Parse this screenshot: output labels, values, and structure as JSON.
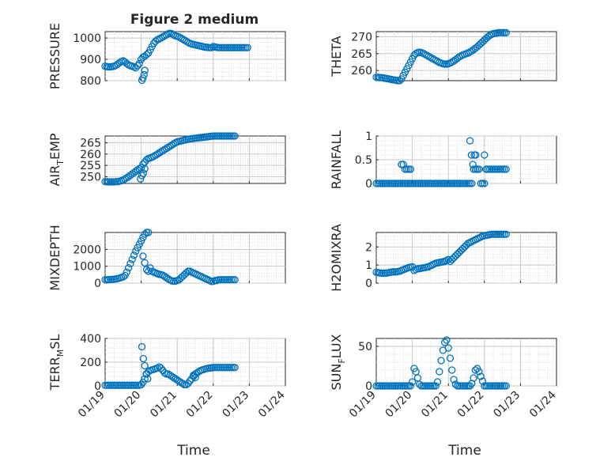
{
  "figure": {
    "title": "Figure 2 medium",
    "marker_color": "#0072BD",
    "grid": true,
    "xlabel": "Time",
    "xticks": [
      "01/19",
      "01/20",
      "01/21",
      "01/22",
      "01/23",
      "01/24"
    ]
  },
  "chart_data": [
    {
      "type": "scatter",
      "ylabel": "PRESSURE",
      "ylim": [
        800,
        1030
      ],
      "yticks": [
        "800",
        "900",
        "1000"
      ],
      "ytick_values": [
        800,
        900,
        1000
      ],
      "x": [
        0.0,
        0.05,
        0.1,
        0.15,
        0.2,
        0.25,
        0.3,
        0.35,
        0.4,
        0.45,
        0.5,
        0.55,
        0.6,
        0.65,
        0.7,
        0.75,
        0.8,
        0.85,
        0.9,
        0.95,
        1.0,
        1.05,
        1.1,
        1.15,
        1.2,
        1.25,
        1.3,
        1.35,
        1.4,
        1.45,
        1.5,
        1.55,
        1.6,
        1.65,
        1.7,
        1.75,
        1.8,
        1.85,
        1.9,
        1.95,
        2.0,
        2.05,
        2.1,
        2.15,
        2.2,
        2.25,
        2.3,
        2.35,
        2.4,
        2.45,
        2.5,
        2.55,
        2.6,
        2.65,
        2.7,
        2.75,
        2.8,
        2.85,
        2.9,
        2.95,
        3.0,
        3.05,
        3.1,
        3.15,
        3.2,
        3.25,
        3.3,
        3.35,
        3.4,
        3.45,
        3.5,
        3.55,
        3.6,
        3.65,
        3.7,
        3.75,
        3.8,
        3.85,
        3.9,
        3.95,
        1.02,
        1.05,
        1.08,
        1.1
      ],
      "y": [
        868,
        866,
        864,
        865,
        866,
        868,
        872,
        878,
        884,
        890,
        893,
        888,
        880,
        874,
        870,
        868,
        864,
        860,
        870,
        880,
        900,
        910,
        915,
        922,
        930,
        945,
        960,
        975,
        985,
        992,
        996,
        1000,
        1005,
        1010,
        1015,
        1020,
        1022,
        1020,
        1015,
        1010,
        1008,
        1005,
        1000,
        995,
        990,
        985,
        980,
        975,
        972,
        970,
        968,
        966,
        964,
        962,
        960,
        958,
        957,
        956,
        955,
        955,
        960,
        958,
        956,
        955,
        955,
        955,
        955,
        955,
        955,
        955,
        955,
        955,
        955,
        955,
        955,
        955,
        955,
        955,
        955,
        955,
        802,
        812,
        828,
        848
      ]
    },
    {
      "type": "scatter",
      "ylabel": "THETA",
      "ylim": [
        257,
        271.5
      ],
      "yticks": [
        "260",
        "265",
        "270"
      ],
      "ytick_values": [
        260,
        265,
        270
      ],
      "x": [
        0.0,
        0.05,
        0.1,
        0.15,
        0.2,
        0.25,
        0.3,
        0.35,
        0.4,
        0.45,
        0.5,
        0.55,
        0.6,
        0.65,
        0.7,
        0.75,
        0.8,
        0.85,
        0.9,
        0.95,
        1.0,
        1.05,
        1.1,
        1.15,
        1.2,
        1.25,
        1.3,
        1.35,
        1.4,
        1.45,
        1.5,
        1.55,
        1.6,
        1.65,
        1.7,
        1.75,
        1.8,
        1.85,
        1.9,
        1.95,
        2.0,
        2.05,
        2.1,
        2.15,
        2.2,
        2.25,
        2.3,
        2.35,
        2.4,
        2.45,
        2.5,
        2.55,
        2.6,
        2.65,
        2.7,
        2.75,
        2.8,
        2.85,
        2.9,
        2.95,
        3.0,
        3.05,
        3.1,
        3.15,
        3.2,
        3.25,
        3.3,
        3.35,
        3.4,
        3.45,
        3.5,
        3.55,
        3.6
      ],
      "y": [
        258.0,
        258.0,
        257.9,
        257.9,
        257.8,
        257.7,
        257.6,
        257.5,
        257.4,
        257.3,
        257.2,
        257.1,
        257.0,
        257.0,
        257.5,
        258.5,
        259.5,
        260.5,
        261.5,
        262.5,
        263.5,
        264.5,
        265.0,
        265.3,
        265.4,
        265.3,
        265.1,
        264.8,
        264.5,
        264.2,
        263.9,
        263.6,
        263.3,
        263.0,
        262.7,
        262.4,
        262.2,
        262.0,
        261.9,
        261.9,
        262.0,
        262.2,
        262.5,
        262.8,
        263.2,
        263.6,
        264.0,
        264.3,
        264.6,
        264.8,
        265.0,
        265.2,
        265.5,
        265.8,
        266.2,
        266.6,
        267.0,
        267.5,
        268.0,
        268.5,
        269.0,
        269.5,
        270.0,
        270.4,
        270.7,
        270.9,
        271.0,
        271.1,
        271.2,
        271.2,
        271.2,
        271.2,
        271.2
      ]
    },
    {
      "type": "scatter",
      "ylabel": "AIR_TEMP",
      "ylim": [
        247,
        268
      ],
      "yticks": [
        "250",
        "255",
        "260",
        "265"
      ],
      "ytick_values": [
        250,
        255,
        260,
        265
      ],
      "x": [
        0.0,
        0.05,
        0.1,
        0.15,
        0.2,
        0.25,
        0.3,
        0.35,
        0.4,
        0.45,
        0.5,
        0.55,
        0.6,
        0.65,
        0.7,
        0.75,
        0.8,
        0.85,
        0.9,
        0.95,
        1.0,
        1.05,
        1.1,
        1.15,
        1.2,
        1.25,
        1.3,
        1.35,
        1.4,
        1.45,
        1.5,
        1.55,
        1.6,
        1.65,
        1.7,
        1.75,
        1.8,
        1.85,
        1.9,
        1.95,
        2.0,
        2.05,
        2.1,
        2.15,
        2.2,
        2.25,
        2.3,
        2.35,
        2.4,
        2.45,
        2.5,
        2.55,
        2.6,
        2.65,
        2.7,
        2.75,
        2.8,
        2.85,
        2.9,
        2.95,
        3.0,
        3.05,
        3.1,
        3.15,
        3.2,
        3.25,
        3.3,
        3.35,
        3.4,
        3.45,
        3.5,
        3.55,
        3.6,
        0.98,
        1.02,
        1.06,
        1.1
      ],
      "y": [
        247.8,
        247.8,
        247.7,
        247.7,
        247.7,
        247.7,
        247.8,
        247.8,
        248.0,
        248.2,
        248.5,
        249.0,
        249.5,
        250.0,
        250.6,
        251.2,
        251.8,
        252.4,
        253.0,
        253.5,
        254.0,
        255.5,
        256.5,
        257.5,
        258.0,
        258.3,
        258.6,
        259.0,
        259.5,
        260.0,
        260.5,
        261.0,
        261.5,
        262.0,
        262.5,
        263.0,
        263.5,
        264.0,
        264.5,
        265.0,
        265.4,
        265.6,
        265.8,
        266.0,
        266.2,
        266.4,
        266.6,
        266.7,
        266.8,
        266.9,
        267.0,
        267.1,
        267.2,
        267.3,
        267.4,
        267.5,
        267.6,
        267.7,
        267.8,
        267.9,
        268.0,
        268.0,
        268.0,
        268.0,
        268.0,
        268.0,
        268.0,
        268.0,
        268.0,
        268.0,
        268.0,
        268.0,
        268.0,
        249.0,
        250.5,
        251.5,
        253.5
      ]
    },
    {
      "type": "scatter",
      "ylabel": "RAINFALL",
      "ylim": [
        0,
        1
      ],
      "yticks": [
        "0",
        "0.5",
        "1"
      ],
      "ytick_values": [
        0,
        0.5,
        1
      ],
      "x": [
        0.0,
        0.05,
        0.1,
        0.15,
        0.2,
        0.25,
        0.3,
        0.35,
        0.4,
        0.45,
        0.5,
        0.55,
        0.6,
        0.65,
        0.7,
        0.75,
        0.8,
        0.85,
        0.9,
        0.95,
        1.0,
        1.05,
        1.1,
        1.15,
        1.2,
        1.25,
        1.3,
        1.35,
        1.4,
        1.45,
        1.5,
        1.55,
        1.6,
        1.65,
        1.7,
        1.75,
        1.8,
        1.85,
        1.9,
        1.95,
        2.0,
        2.05,
        2.1,
        2.15,
        2.2,
        2.25,
        2.3,
        2.35,
        2.4,
        2.45,
        2.5,
        2.55,
        2.6,
        2.65,
        2.7,
        2.75,
        2.8,
        2.85,
        2.9,
        2.95,
        3.0,
        3.05,
        3.1,
        3.15,
        3.2,
        3.25,
        3.3,
        3.35,
        3.4,
        3.45,
        3.5,
        3.55,
        3.6,
        0.7,
        0.75,
        0.8,
        0.85,
        0.9,
        0.95,
        2.6,
        2.64,
        2.68,
        2.72,
        2.76,
        2.8,
        3.0,
        3.05
      ],
      "y": [
        0,
        0,
        0,
        0,
        0,
        0,
        0,
        0,
        0,
        0,
        0,
        0,
        0,
        0,
        0,
        0,
        0,
        0,
        0,
        0,
        0,
        0,
        0,
        0,
        0,
        0,
        0,
        0,
        0,
        0,
        0,
        0,
        0,
        0,
        0,
        0,
        0,
        0,
        0,
        0,
        0,
        0,
        0,
        0,
        0,
        0,
        0,
        0,
        0,
        0,
        0,
        0,
        0,
        0,
        0.3,
        0.3,
        0.3,
        0.3,
        0,
        0,
        0,
        0.3,
        0.3,
        0.3,
        0.3,
        0.3,
        0.3,
        0.3,
        0.3,
        0.3,
        0.3,
        0.3,
        0.3,
        0.4,
        0.4,
        0.3,
        0.3,
        0.3,
        0.3,
        0.9,
        0.6,
        0.4,
        0.6,
        0.6,
        0.3,
        0.6,
        0.3
      ]
    },
    {
      "type": "scatter",
      "ylabel": "MIXDEPTH",
      "ylim": [
        0,
        3000
      ],
      "yticks": [
        "0",
        "1000",
        "2000"
      ],
      "ytick_values": [
        0,
        1000,
        2000
      ],
      "x": [
        0.0,
        0.05,
        0.1,
        0.15,
        0.2,
        0.25,
        0.3,
        0.35,
        0.4,
        0.45,
        0.5,
        0.55,
        0.6,
        0.65,
        0.7,
        0.75,
        0.8,
        0.85,
        0.9,
        0.95,
        1.0,
        1.05,
        1.1,
        1.15,
        1.2,
        1.25,
        1.3,
        1.35,
        1.4,
        1.45,
        1.5,
        1.55,
        1.6,
        1.65,
        1.7,
        1.75,
        1.8,
        1.85,
        1.9,
        1.95,
        2.0,
        2.05,
        2.1,
        2.15,
        2.2,
        2.25,
        2.3,
        2.35,
        2.4,
        2.45,
        2.5,
        2.55,
        2.6,
        2.65,
        2.7,
        2.75,
        2.8,
        2.85,
        2.9,
        2.95,
        3.0,
        3.05,
        3.1,
        3.15,
        3.2,
        3.25,
        3.3,
        3.35,
        3.4,
        3.45,
        3.5,
        3.55,
        3.6,
        1.05,
        1.1,
        1.15,
        1.2
      ],
      "y": [
        200,
        200,
        200,
        210,
        220,
        230,
        250,
        270,
        300,
        330,
        370,
        450,
        650,
        900,
        1150,
        1400,
        1650,
        1900,
        2100,
        2300,
        2500,
        2700,
        2900,
        3000,
        3000,
        900,
        700,
        650,
        600,
        560,
        520,
        500,
        470,
        400,
        320,
        250,
        180,
        130,
        110,
        120,
        150,
        200,
        300,
        400,
        500,
        600,
        700,
        700,
        650,
        600,
        550,
        500,
        450,
        400,
        350,
        300,
        250,
        200,
        150,
        100,
        100,
        150,
        150,
        200,
        200,
        200,
        200,
        200,
        200,
        200,
        200,
        200,
        200,
        1600,
        1200,
        800,
        700
      ]
    },
    {
      "type": "scatter",
      "ylabel": "H2OMIXRA",
      "ylim": [
        0,
        2.8
      ],
      "yticks": [
        "0",
        "1",
        "2"
      ],
      "ytick_values": [
        0,
        1,
        2
      ],
      "x": [
        0.0,
        0.05,
        0.1,
        0.15,
        0.2,
        0.25,
        0.3,
        0.35,
        0.4,
        0.45,
        0.5,
        0.55,
        0.6,
        0.65,
        0.7,
        0.75,
        0.8,
        0.85,
        0.9,
        0.95,
        1.0,
        1.05,
        1.1,
        1.15,
        1.2,
        1.25,
        1.3,
        1.35,
        1.4,
        1.45,
        1.5,
        1.55,
        1.6,
        1.65,
        1.7,
        1.75,
        1.8,
        1.85,
        1.9,
        1.95,
        2.0,
        2.05,
        2.1,
        2.15,
        2.2,
        2.25,
        2.3,
        2.35,
        2.4,
        2.45,
        2.5,
        2.55,
        2.6,
        2.65,
        2.7,
        2.75,
        2.8,
        2.85,
        2.9,
        2.95,
        3.0,
        3.05,
        3.1,
        3.15,
        3.2,
        3.25,
        3.3,
        3.35,
        3.4,
        3.45,
        3.5,
        3.55,
        3.6
      ],
      "y": [
        0.6,
        0.58,
        0.56,
        0.55,
        0.55,
        0.55,
        0.56,
        0.58,
        0.6,
        0.62,
        0.62,
        0.62,
        0.64,
        0.66,
        0.7,
        0.74,
        0.78,
        0.82,
        0.86,
        0.88,
        0.9,
        0.7,
        0.75,
        0.8,
        0.8,
        0.82,
        0.84,
        0.86,
        0.88,
        0.9,
        0.95,
        1.0,
        1.05,
        1.1,
        1.12,
        1.14,
        1.16,
        1.18,
        1.2,
        1.25,
        1.3,
        1.2,
        1.3,
        1.4,
        1.5,
        1.6,
        1.7,
        1.8,
        1.9,
        2.0,
        2.1,
        2.2,
        2.25,
        2.3,
        2.35,
        2.4,
        2.45,
        2.5,
        2.55,
        2.6,
        2.62,
        2.64,
        2.66,
        2.68,
        2.7,
        2.7,
        2.7,
        2.7,
        2.7,
        2.7,
        2.7,
        2.7,
        2.7
      ]
    },
    {
      "type": "scatter",
      "ylabel": "TERR_MSL",
      "ylim": [
        0,
        400
      ],
      "yticks": [
        "0",
        "200",
        "400"
      ],
      "ytick_values": [
        0,
        200,
        400
      ],
      "x": [
        0.0,
        0.05,
        0.1,
        0.15,
        0.2,
        0.25,
        0.3,
        0.35,
        0.4,
        0.45,
        0.5,
        0.55,
        0.6,
        0.65,
        0.7,
        0.75,
        0.8,
        0.85,
        0.9,
        0.95,
        1.0,
        1.05,
        1.1,
        1.15,
        1.2,
        1.25,
        1.3,
        1.35,
        1.4,
        1.45,
        1.5,
        1.55,
        1.6,
        1.65,
        1.7,
        1.75,
        1.8,
        1.85,
        1.9,
        1.95,
        2.0,
        2.05,
        2.1,
        2.15,
        2.2,
        2.25,
        2.3,
        2.35,
        2.4,
        2.45,
        2.5,
        2.55,
        2.6,
        2.65,
        2.7,
        2.75,
        2.8,
        2.85,
        2.9,
        2.95,
        3.0,
        3.05,
        3.1,
        3.15,
        3.2,
        3.25,
        3.3,
        3.35,
        3.4,
        3.45,
        3.5,
        3.55,
        3.6,
        1.02,
        1.06,
        1.1,
        1.14,
        1.18,
        2.45,
        2.5
      ],
      "y": [
        5,
        5,
        5,
        5,
        5,
        5,
        5,
        5,
        5,
        5,
        5,
        5,
        5,
        5,
        5,
        5,
        5,
        5,
        5,
        5,
        10,
        30,
        60,
        100,
        120,
        130,
        135,
        140,
        145,
        150,
        160,
        150,
        130,
        110,
        100,
        100,
        90,
        80,
        70,
        60,
        50,
        40,
        30,
        20,
        10,
        10,
        20,
        40,
        60,
        80,
        100,
        110,
        120,
        130,
        135,
        140,
        145,
        148,
        150,
        152,
        155,
        155,
        155,
        155,
        155,
        155,
        155,
        155,
        155,
        155,
        155,
        155,
        155,
        330,
        230,
        170,
        100,
        60,
        90,
        70
      ]
    },
    {
      "type": "scatter",
      "ylabel": "SUN_FLUX",
      "ylim": [
        0,
        60
      ],
      "yticks": [
        "0",
        "50"
      ],
      "ytick_values": [
        0,
        50
      ],
      "x": [
        0.0,
        0.05,
        0.1,
        0.15,
        0.2,
        0.25,
        0.3,
        0.35,
        0.4,
        0.45,
        0.5,
        0.55,
        0.6,
        0.65,
        0.7,
        0.75,
        0.8,
        0.85,
        0.9,
        0.95,
        1.0,
        1.05,
        1.1,
        1.15,
        1.2,
        1.25,
        1.3,
        1.35,
        1.4,
        1.45,
        1.5,
        1.55,
        1.6,
        1.65,
        1.7,
        1.75,
        1.8,
        1.85,
        1.9,
        1.95,
        2.0,
        2.05,
        2.1,
        2.15,
        2.2,
        2.25,
        2.3,
        2.35,
        2.4,
        2.45,
        2.5,
        2.55,
        2.6,
        2.65,
        2.7,
        2.75,
        2.8,
        2.85,
        2.9,
        2.95,
        3.0,
        3.05,
        3.1,
        3.15,
        3.2,
        3.25,
        3.3,
        3.35,
        3.4,
        3.45,
        3.5,
        3.55,
        3.6
      ],
      "y": [
        0,
        0,
        0,
        0,
        0,
        0,
        0,
        0,
        0,
        0,
        0,
        0,
        0,
        0,
        0,
        0,
        0,
        0,
        0,
        0,
        5,
        22,
        18,
        10,
        2,
        0,
        0,
        0,
        0,
        0,
        0,
        0,
        0,
        0,
        5,
        18,
        32,
        45,
        55,
        58,
        48,
        35,
        20,
        8,
        2,
        0,
        0,
        0,
        0,
        0,
        0,
        0,
        0,
        3,
        10,
        20,
        22,
        18,
        12,
        6,
        0,
        0,
        0,
        0,
        0,
        0,
        0,
        0,
        0,
        0,
        0,
        0,
        0
      ]
    }
  ]
}
